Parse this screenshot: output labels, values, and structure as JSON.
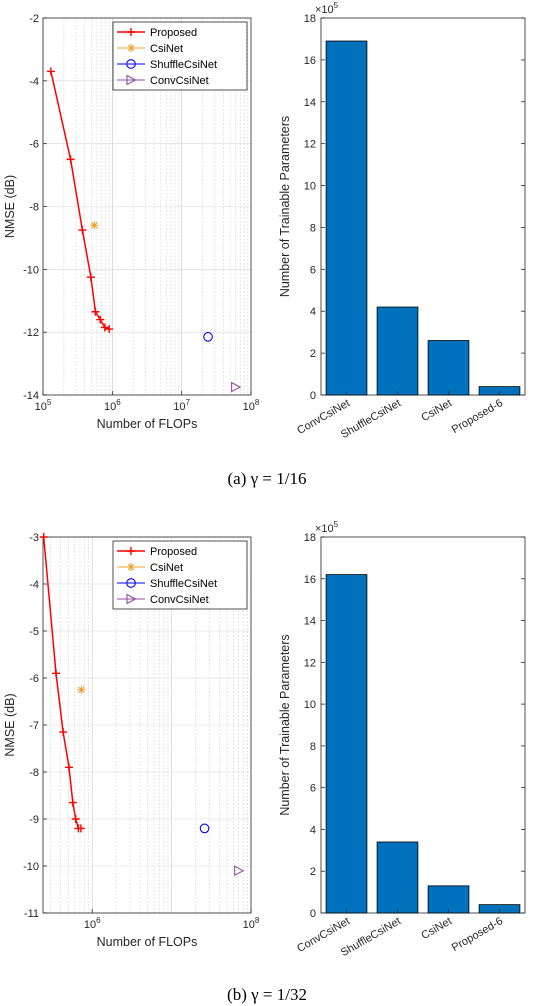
{
  "captions": [
    "(a)  γ = 1/16",
    "(b)  γ = 1/32"
  ],
  "chart_data": [
    {
      "type": "line",
      "panel": "a-left",
      "xlabel": "Number of FLOPs",
      "ylabel": "NMSE (dB)",
      "xscale": "log",
      "xlim": [
        100000,
        100000000
      ],
      "ylim": [
        -14,
        -2
      ],
      "xticks": [
        100000,
        1000000,
        10000000,
        100000000
      ],
      "xtick_labels": [
        [
          "10",
          "5"
        ],
        [
          "10",
          "6"
        ],
        [
          "10",
          "7"
        ],
        [
          "10",
          "8"
        ]
      ],
      "yticks": [
        -14,
        -12,
        -10,
        -8,
        -6,
        -4,
        -2
      ],
      "grid": true,
      "legend_position": "top-right",
      "legend": [
        "Proposed",
        "CsiNet",
        "ShuffleCsiNet",
        "ConvCsiNet"
      ],
      "series": [
        {
          "name": "Proposed",
          "color": "#ff0000",
          "marker": "plus",
          "line": true,
          "points": [
            [
              130000,
              -3.7
            ],
            [
              250000,
              -6.5
            ],
            [
              370000,
              -8.75
            ],
            [
              490000,
              -10.25
            ],
            [
              570000,
              -11.35
            ],
            [
              670000,
              -11.6
            ],
            [
              780000,
              -11.85
            ],
            [
              900000,
              -11.9
            ]
          ]
        },
        {
          "name": "CsiNet",
          "color": "#f0a030",
          "marker": "asterisk",
          "line": false,
          "points": [
            [
              550000,
              -8.6
            ]
          ]
        },
        {
          "name": "ShuffleCsiNet",
          "color": "#0000ff",
          "marker": "circle",
          "line": false,
          "points": [
            [
              24000000,
              -12.15
            ]
          ]
        },
        {
          "name": "ConvCsiNet",
          "color": "#9050a0",
          "marker": "triangle-right",
          "line": false,
          "points": [
            [
              60000000,
              -13.75
            ]
          ]
        }
      ]
    },
    {
      "type": "bar",
      "panel": "a-right",
      "categories": [
        "ConvCsiNet",
        "ShuffleCsiNet",
        "CsiNet",
        "Proposed-6"
      ],
      "values": [
        16.9,
        4.2,
        2.6,
        0.4
      ],
      "ylabel": "Number of Trainable Parameters",
      "multiplier": [
        "×10",
        "5"
      ],
      "ylim": [
        0,
        18
      ],
      "yticks": [
        0,
        2,
        4,
        6,
        8,
        10,
        12,
        14,
        16,
        18
      ],
      "bar_color": "#0072bd"
    },
    {
      "type": "line",
      "panel": "b-left",
      "xlabel": "Number of FLOPs",
      "ylabel": "NMSE (dB)",
      "xscale": "log",
      "xlim": [
        240000,
        100000000
      ],
      "ylim": [
        -11,
        -3
      ],
      "xticks": [
        1000000,
        100000000
      ],
      "xtick_labels": [
        [
          "10",
          "6"
        ],
        [
          "10",
          "8"
        ]
      ],
      "yticks": [
        -11,
        -10,
        -9,
        -8,
        -7,
        -6,
        -5,
        -4,
        -3
      ],
      "grid": true,
      "legend_position": "top-right",
      "legend": [
        "Proposed",
        "CsiNet",
        "ShuffleCsiNet",
        "ConvCsiNet"
      ],
      "series": [
        {
          "name": "Proposed",
          "color": "#ff0000",
          "marker": "plus",
          "line": true,
          "points": [
            [
              245000,
              -3.0
            ],
            [
              350000,
              -5.9
            ],
            [
              430000,
              -7.15
            ],
            [
              510000,
              -7.9
            ],
            [
              570000,
              -8.65
            ],
            [
              620000,
              -9.0
            ],
            [
              670000,
              -9.2
            ],
            [
              720000,
              -9.2
            ]
          ]
        },
        {
          "name": "CsiNet",
          "color": "#f0a030",
          "marker": "asterisk",
          "line": false,
          "points": [
            [
              730000,
              -6.25
            ]
          ]
        },
        {
          "name": "ShuffleCsiNet",
          "color": "#0000ff",
          "marker": "circle",
          "line": false,
          "points": [
            [
              26000000,
              -9.2
            ]
          ]
        },
        {
          "name": "ConvCsiNet",
          "color": "#9050a0",
          "marker": "triangle-right",
          "line": false,
          "points": [
            [
              70000000,
              -10.1
            ]
          ]
        }
      ]
    },
    {
      "type": "bar",
      "panel": "b-right",
      "categories": [
        "ConvCsiNet",
        "ShuffleCsiNet",
        "CsiNet",
        "Proposed-6"
      ],
      "values": [
        16.2,
        3.4,
        1.3,
        0.4
      ],
      "ylabel": "Number of Trainable Parameters",
      "multiplier": [
        "×10",
        "5"
      ],
      "ylim": [
        0,
        18
      ],
      "yticks": [
        0,
        2,
        4,
        6,
        8,
        10,
        12,
        14,
        16,
        18
      ],
      "bar_color": "#0072bd"
    }
  ]
}
